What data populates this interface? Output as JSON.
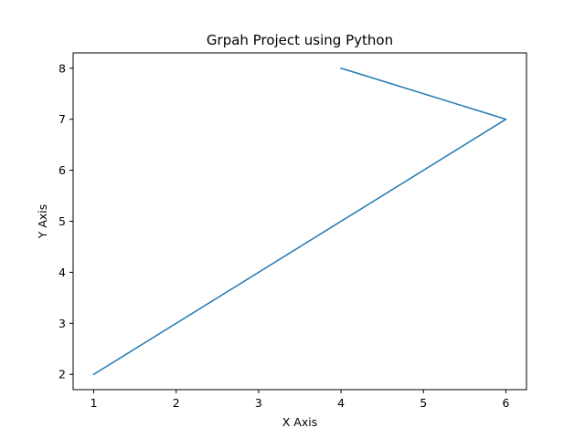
{
  "chart_data": {
    "type": "line",
    "title": "Grpah Project using Python",
    "xlabel": "X Axis",
    "ylabel": "Y Axis",
    "x": [
      1,
      6,
      4
    ],
    "series": [
      {
        "x": [
          1,
          6,
          4
        ],
        "values": [
          2,
          7,
          8
        ],
        "color": "#1f77b4"
      }
    ],
    "xlim": [
      0.75,
      6.25
    ],
    "ylim": [
      1.7,
      8.3
    ],
    "xticks": [
      "1",
      "2",
      "3",
      "4",
      "5",
      "6"
    ],
    "yticks": [
      "2",
      "3",
      "4",
      "5",
      "6",
      "7",
      "8"
    ],
    "grid": false,
    "legend": "none"
  }
}
